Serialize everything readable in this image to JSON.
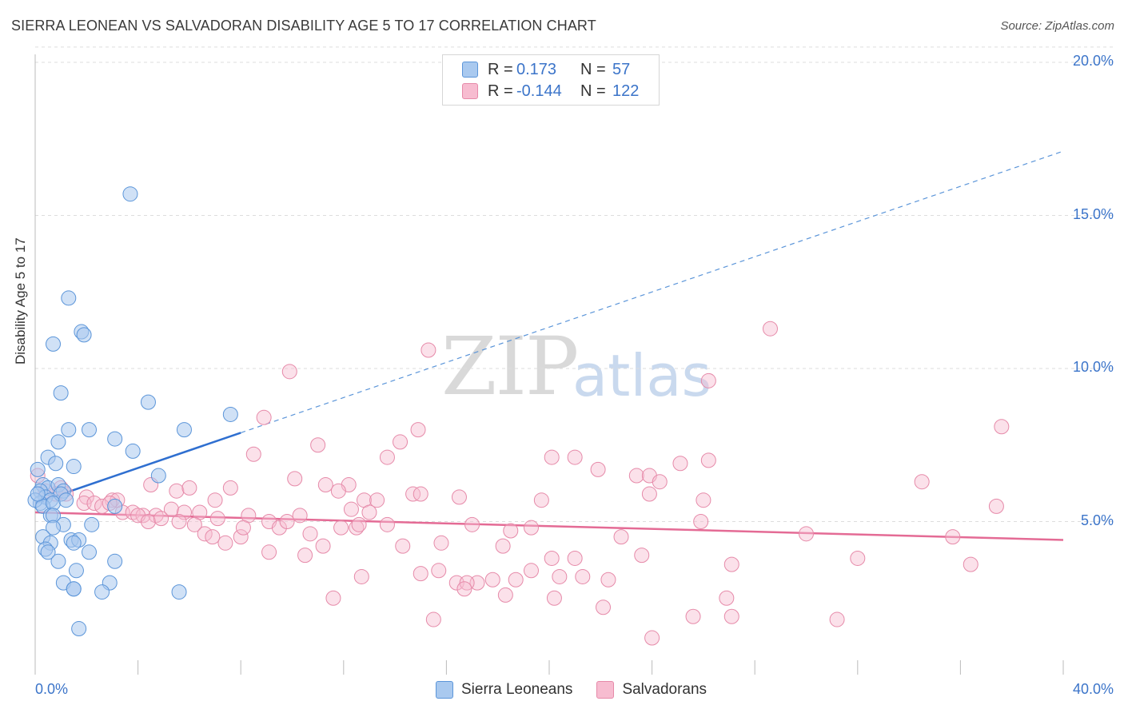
{
  "title": "SIERRA LEONEAN VS SALVADORAN DISABILITY AGE 5 TO 17 CORRELATION CHART",
  "source": "Source: ZipAtlas.com",
  "watermark": {
    "zip": "ZIP",
    "atlas": "atlas"
  },
  "colors": {
    "blue_fill": "#a9c9ef",
    "blue_stroke": "#5b95d9",
    "blue_line": "#2f6fd0",
    "pink_fill": "#f7bcd0",
    "pink_stroke": "#e68aa9",
    "pink_line": "#e46b95",
    "grid": "#dddddd",
    "tick_text": "#3b74c9"
  },
  "legend_top": [
    {
      "r_label": "R =",
      "r_value": "0.173",
      "n_label": "N =",
      "n_value": "57"
    },
    {
      "r_label": "R =",
      "r_value": "-0.144",
      "n_label": "N =",
      "n_value": "122"
    }
  ],
  "legend_bottom": [
    "Sierra Leoneans",
    "Salvadorans"
  ],
  "chart_data": {
    "type": "scatter",
    "title": "SIERRA LEONEAN VS SALVADORAN DISABILITY AGE 5 TO 17 CORRELATION CHART",
    "xlabel": "",
    "ylabel": "Disability Age 5 to 17",
    "xlim": [
      0,
      40
    ],
    "ylim": [
      0,
      20.5
    ],
    "x_tick_labels": [
      "0.0%",
      "40.0%"
    ],
    "y_ticks": [
      5,
      10,
      15,
      20
    ],
    "y_tick_labels": [
      "5.0%",
      "10.0%",
      "15.0%",
      "20.0%"
    ],
    "grid": true,
    "series": [
      {
        "name": "Sierra Leoneans",
        "r": 0.173,
        "n": 57,
        "trend": {
          "x0": 0,
          "y0": 5.6,
          "x_solid_end": 8,
          "x1": 40,
          "y1": 17.1
        },
        "points": [
          [
            3.7,
            15.7
          ],
          [
            1.3,
            12.3
          ],
          [
            1.8,
            11.2
          ],
          [
            1.9,
            11.1
          ],
          [
            0.7,
            10.8
          ],
          [
            1.0,
            9.2
          ],
          [
            4.4,
            8.9
          ],
          [
            7.6,
            8.5
          ],
          [
            1.3,
            8.0
          ],
          [
            2.1,
            8.0
          ],
          [
            5.8,
            8.0
          ],
          [
            0.9,
            7.6
          ],
          [
            3.1,
            7.7
          ],
          [
            3.8,
            7.3
          ],
          [
            0.5,
            7.1
          ],
          [
            0.8,
            6.9
          ],
          [
            1.5,
            6.8
          ],
          [
            0.1,
            6.7
          ],
          [
            4.8,
            6.5
          ],
          [
            0.3,
            6.2
          ],
          [
            0.5,
            6.1
          ],
          [
            0.9,
            6.2
          ],
          [
            1.1,
            6.0
          ],
          [
            0.2,
            6.0
          ],
          [
            0.4,
            5.8
          ],
          [
            0.6,
            5.7
          ],
          [
            0.2,
            5.6
          ],
          [
            1.0,
            5.9
          ],
          [
            0.0,
            5.7
          ],
          [
            0.3,
            5.5
          ],
          [
            0.1,
            5.9
          ],
          [
            0.7,
            5.6
          ],
          [
            1.2,
            5.7
          ],
          [
            3.1,
            5.5
          ],
          [
            0.6,
            5.2
          ],
          [
            0.7,
            5.2
          ],
          [
            1.1,
            4.9
          ],
          [
            0.7,
            4.8
          ],
          [
            2.2,
            4.9
          ],
          [
            0.3,
            4.5
          ],
          [
            1.4,
            4.4
          ],
          [
            1.7,
            4.4
          ],
          [
            0.6,
            4.3
          ],
          [
            1.5,
            4.3
          ],
          [
            0.4,
            4.1
          ],
          [
            0.5,
            4.0
          ],
          [
            2.1,
            4.0
          ],
          [
            3.1,
            3.7
          ],
          [
            0.9,
            3.7
          ],
          [
            1.6,
            3.4
          ],
          [
            1.1,
            3.0
          ],
          [
            2.9,
            3.0
          ],
          [
            1.5,
            2.8
          ],
          [
            1.5,
            2.8
          ],
          [
            2.6,
            2.7
          ],
          [
            5.6,
            2.7
          ],
          [
            1.7,
            1.5
          ]
        ]
      },
      {
        "name": "Salvadorans",
        "r": -0.144,
        "n": 122,
        "trend": {
          "x0": 0,
          "y0": 5.3,
          "x1": 40,
          "y1": 4.4
        },
        "points": [
          [
            28.6,
            11.3
          ],
          [
            15.3,
            10.6
          ],
          [
            9.9,
            9.9
          ],
          [
            26.2,
            9.6
          ],
          [
            8.9,
            8.4
          ],
          [
            37.6,
            8.1
          ],
          [
            14.9,
            8.0
          ],
          [
            14.2,
            7.6
          ],
          [
            11.0,
            7.5
          ],
          [
            8.5,
            7.2
          ],
          [
            13.7,
            7.1
          ],
          [
            20.1,
            7.1
          ],
          [
            21.0,
            7.1
          ],
          [
            25.1,
            6.9
          ],
          [
            26.2,
            7.0
          ],
          [
            21.9,
            6.7
          ],
          [
            23.4,
            6.5
          ],
          [
            23.9,
            6.5
          ],
          [
            4.5,
            6.2
          ],
          [
            10.1,
            6.4
          ],
          [
            11.3,
            6.2
          ],
          [
            12.2,
            6.2
          ],
          [
            7.6,
            6.1
          ],
          [
            11.8,
            6.0
          ],
          [
            14.7,
            5.9
          ],
          [
            15.0,
            5.9
          ],
          [
            16.5,
            5.8
          ],
          [
            23.9,
            5.9
          ],
          [
            5.5,
            6.0
          ],
          [
            6.0,
            6.1
          ],
          [
            1.0,
            6.1
          ],
          [
            2.0,
            5.8
          ],
          [
            3.0,
            5.7
          ],
          [
            12.8,
            5.7
          ],
          [
            13.3,
            5.7
          ],
          [
            19.7,
            5.7
          ],
          [
            26.0,
            5.7
          ],
          [
            0.1,
            6.5
          ],
          [
            0.4,
            6.0
          ],
          [
            0.8,
            5.9
          ],
          [
            1.2,
            5.9
          ],
          [
            1.9,
            5.6
          ],
          [
            2.3,
            5.6
          ],
          [
            2.6,
            5.5
          ],
          [
            3.4,
            5.3
          ],
          [
            3.8,
            5.3
          ],
          [
            4.2,
            5.2
          ],
          [
            4.7,
            5.2
          ],
          [
            5.3,
            5.4
          ],
          [
            5.8,
            5.3
          ],
          [
            6.4,
            5.3
          ],
          [
            7.1,
            5.1
          ],
          [
            8.3,
            5.2
          ],
          [
            9.1,
            5.0
          ],
          [
            10.3,
            5.2
          ],
          [
            12.3,
            5.4
          ],
          [
            13.0,
            5.3
          ],
          [
            3.2,
            5.7
          ],
          [
            4.0,
            5.2
          ],
          [
            4.4,
            5.0
          ],
          [
            4.9,
            5.1
          ],
          [
            5.6,
            5.0
          ],
          [
            6.2,
            4.9
          ],
          [
            6.6,
            4.6
          ],
          [
            6.9,
            4.5
          ],
          [
            7.4,
            4.3
          ],
          [
            8.0,
            4.5
          ],
          [
            8.1,
            4.8
          ],
          [
            9.5,
            4.8
          ],
          [
            10.7,
            4.6
          ],
          [
            11.9,
            4.8
          ],
          [
            12.5,
            4.8
          ],
          [
            13.7,
            4.9
          ],
          [
            17.0,
            4.9
          ],
          [
            18.5,
            4.7
          ],
          [
            19.3,
            4.8
          ],
          [
            22.8,
            4.5
          ],
          [
            25.9,
            5.0
          ],
          [
            30.0,
            4.6
          ],
          [
            35.7,
            4.5
          ],
          [
            37.4,
            5.5
          ],
          [
            34.5,
            6.3
          ],
          [
            18.2,
            4.2
          ],
          [
            15.8,
            4.3
          ],
          [
            11.2,
            4.2
          ],
          [
            9.1,
            4.0
          ],
          [
            10.5,
            3.9
          ],
          [
            20.1,
            3.8
          ],
          [
            21.0,
            3.8
          ],
          [
            23.6,
            3.9
          ],
          [
            27.1,
            3.6
          ],
          [
            32.0,
            3.8
          ],
          [
            36.4,
            3.6
          ],
          [
            14.3,
            4.2
          ],
          [
            17.2,
            3.0
          ],
          [
            15.0,
            3.3
          ],
          [
            15.7,
            3.4
          ],
          [
            16.4,
            3.0
          ],
          [
            16.8,
            3.0
          ],
          [
            17.8,
            3.1
          ],
          [
            18.7,
            3.1
          ],
          [
            19.3,
            3.4
          ],
          [
            20.4,
            3.2
          ],
          [
            21.3,
            3.2
          ],
          [
            22.3,
            3.1
          ],
          [
            12.7,
            3.2
          ],
          [
            18.3,
            2.6
          ],
          [
            16.7,
            2.8
          ],
          [
            20.2,
            2.5
          ],
          [
            11.6,
            2.5
          ],
          [
            22.1,
            2.2
          ],
          [
            26.9,
            2.5
          ],
          [
            15.5,
            1.8
          ],
          [
            25.6,
            1.9
          ],
          [
            27.1,
            1.9
          ],
          [
            31.2,
            1.8
          ],
          [
            24.0,
            1.2
          ],
          [
            24.3,
            6.3
          ],
          [
            7.0,
            5.7
          ],
          [
            9.8,
            5.0
          ],
          [
            12.6,
            4.9
          ],
          [
            2.9,
            5.6
          ]
        ]
      }
    ]
  }
}
